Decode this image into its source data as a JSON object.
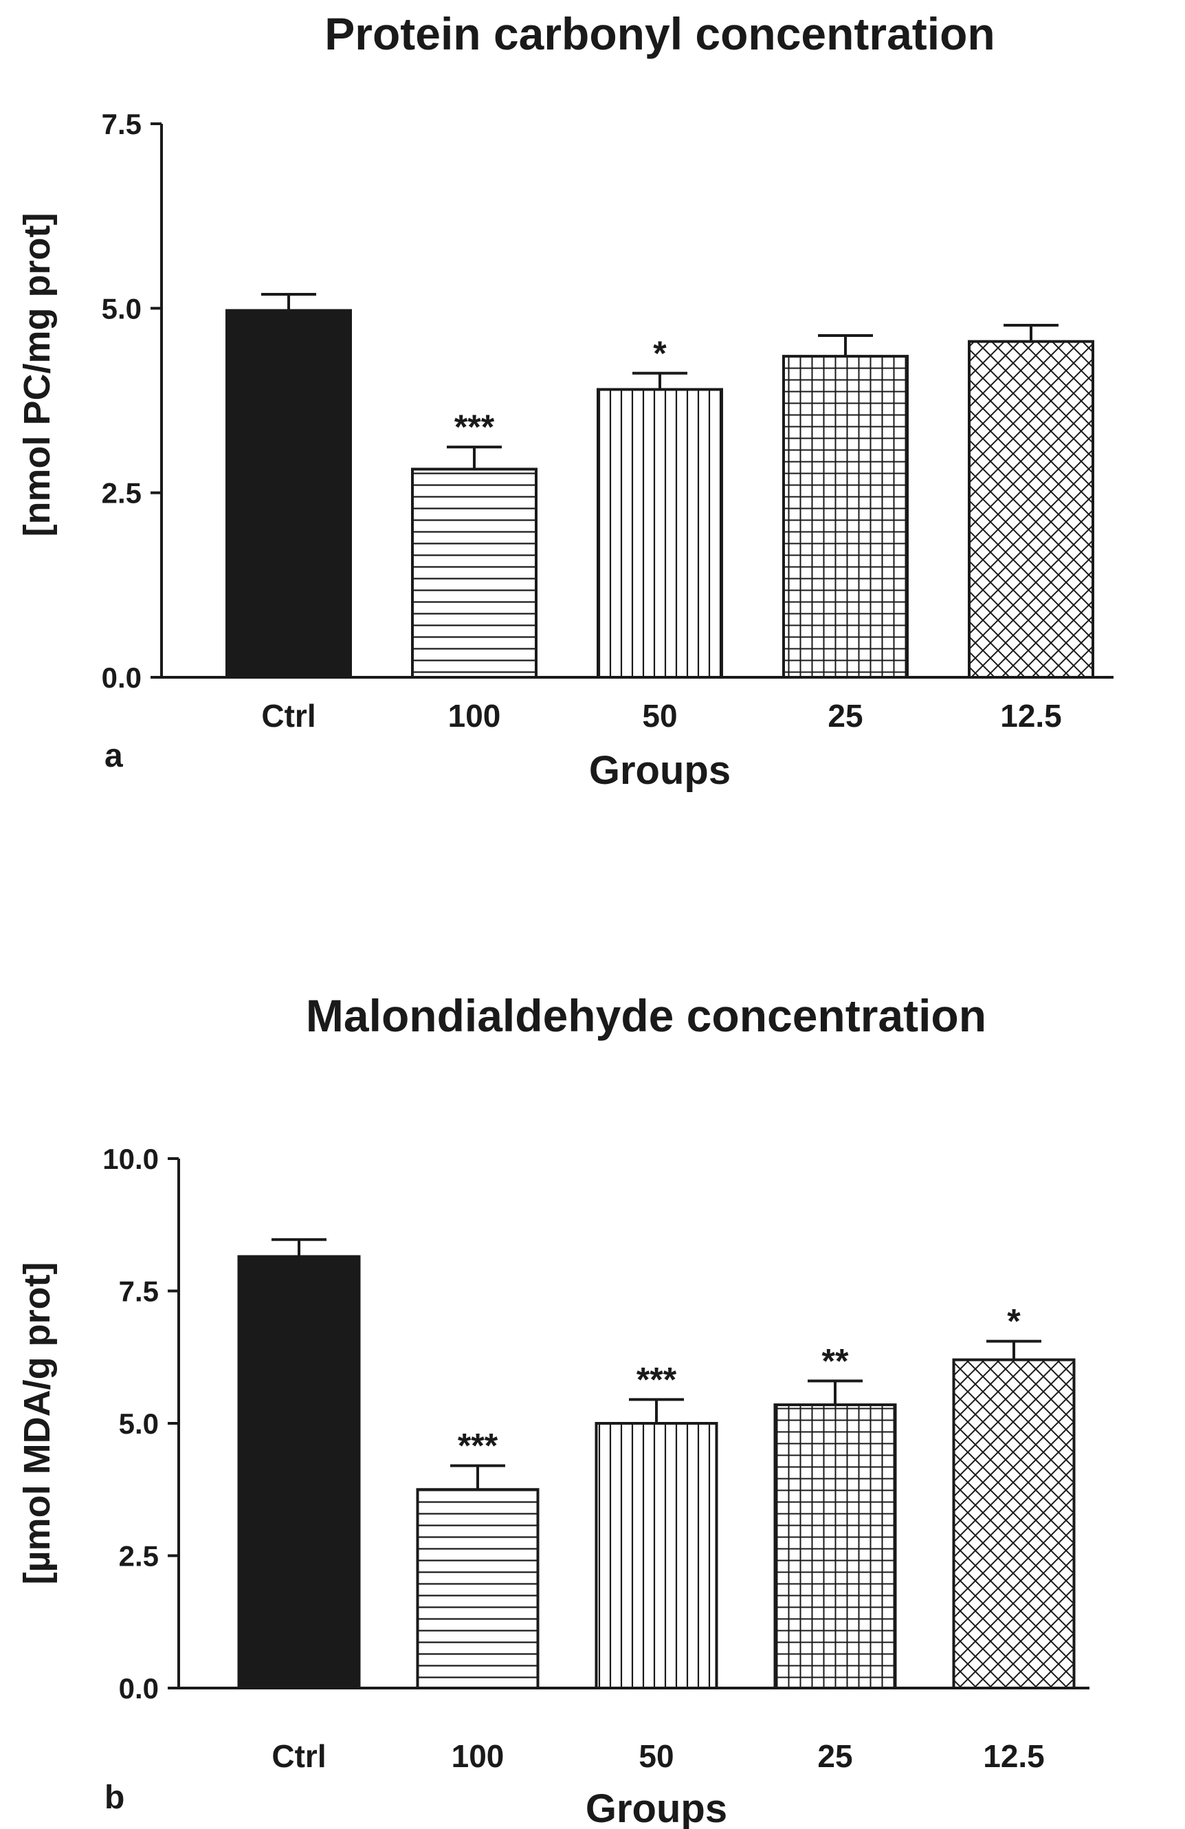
{
  "chart_data": [
    {
      "type": "bar",
      "panel_label": "a",
      "title": "Protein carbonyl concentration",
      "xlabel": "Groups",
      "ylabel": "[nmol PC/mg prot]",
      "ylim": [
        0,
        7.5
      ],
      "yticks": [
        0.0,
        2.5,
        5.0,
        7.5
      ],
      "ytick_labels": [
        "0.0",
        "2.5",
        "5.0",
        "7.5"
      ],
      "categories": [
        "Ctrl",
        "100",
        "50",
        "25",
        "12.5"
      ],
      "values": [
        4.97,
        2.82,
        3.9,
        4.35,
        4.55
      ],
      "errors": [
        0.22,
        0.3,
        0.22,
        0.28,
        0.22
      ],
      "significance": [
        "",
        "***",
        "*",
        "",
        ""
      ],
      "patterns": [
        "solid",
        "horizontal",
        "vertical",
        "grid",
        "crosshatch"
      ],
      "bar_color": "#1a1a1a",
      "grid": false,
      "legend": "none"
    },
    {
      "type": "bar",
      "panel_label": "b",
      "title": "Malondialdehyde concentration",
      "xlabel": "Groups",
      "ylabel": "[µmol MDA/g prot]",
      "ylim": [
        0,
        10
      ],
      "yticks": [
        0.0,
        2.5,
        5.0,
        7.5,
        10.0
      ],
      "ytick_labels": [
        "0.0",
        "2.5",
        "5.0",
        "7.5",
        "10.0"
      ],
      "categories": [
        "Ctrl",
        "100",
        "50",
        "25",
        "12.5"
      ],
      "values": [
        8.15,
        3.75,
        5.0,
        5.35,
        6.2
      ],
      "errors": [
        0.32,
        0.45,
        0.45,
        0.45,
        0.35
      ],
      "significance": [
        "",
        "***",
        "***",
        "**",
        "*"
      ],
      "patterns": [
        "solid",
        "horizontal",
        "vertical",
        "grid",
        "crosshatch"
      ],
      "bar_color": "#1a1a1a",
      "grid": false,
      "legend": "none"
    }
  ]
}
